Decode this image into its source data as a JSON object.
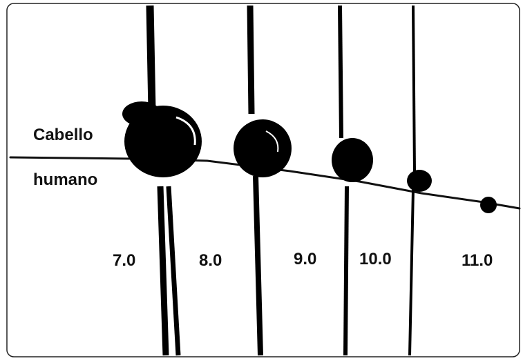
{
  "hair_label": {
    "line1": "Cabello",
    "line2": "humano"
  },
  "suture_sizes": [
    "7.0",
    "8.0",
    "9.0",
    "10.0",
    "11.0"
  ]
}
